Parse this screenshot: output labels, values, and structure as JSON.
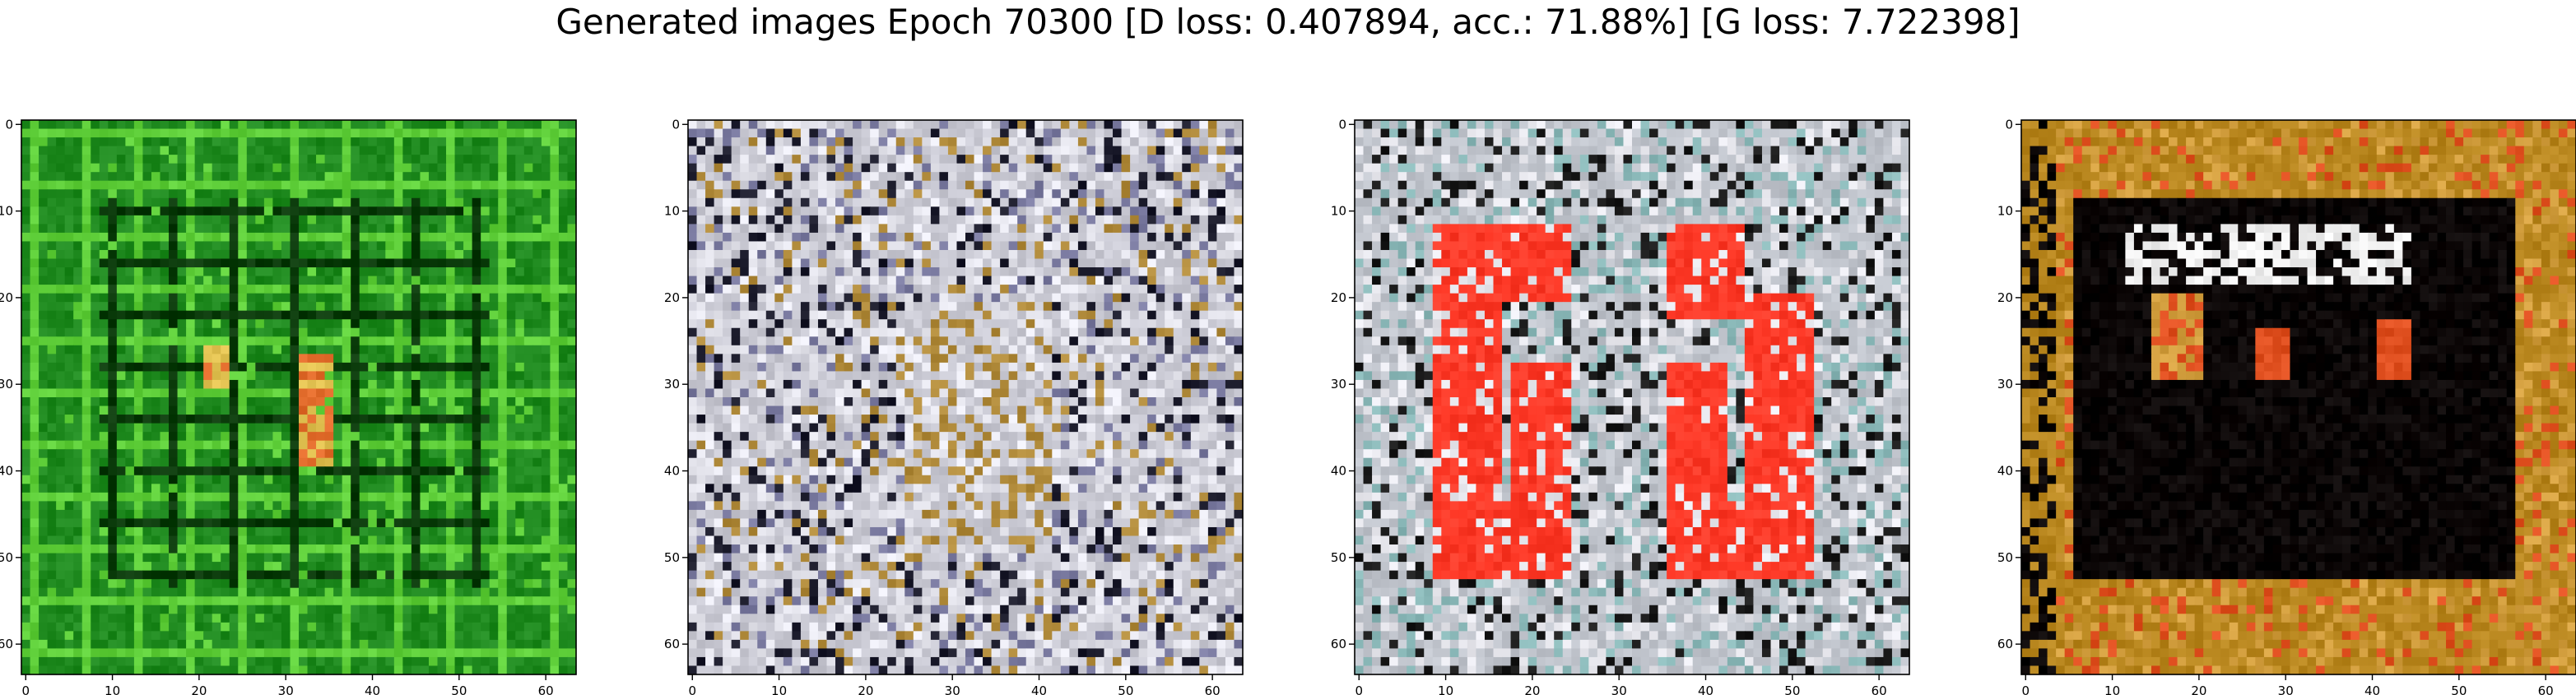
{
  "figure": {
    "title": "Generated images Epoch 70300 [D loss: 0.407894, acc.: 71.88%] [G loss: 7.722398]"
  },
  "chart_data": [
    {
      "type": "heatmap",
      "image_shape": [
        64,
        64
      ],
      "dominant_palette": [
        "#1f8a1f",
        "#5fcf3a",
        "#0a3a0a",
        "#e0c050",
        "#e06a2a"
      ],
      "xlim": [
        -0.5,
        63.5
      ],
      "ylim": [
        63.5,
        -0.5
      ],
      "x_ticks": [
        0,
        10,
        20,
        30,
        40,
        50,
        60
      ],
      "y_ticks": [
        0,
        10,
        20,
        30,
        40,
        50,
        60
      ],
      "grid": false
    },
    {
      "type": "heatmap",
      "image_shape": [
        64,
        64
      ],
      "dominant_palette": [
        "#c8c8d2",
        "#e8e8f0",
        "#1a1a2a",
        "#7a7aa0",
        "#b08a3a"
      ],
      "xlim": [
        -0.5,
        63.5
      ],
      "ylim": [
        63.5,
        -0.5
      ],
      "x_ticks": [
        0,
        10,
        20,
        30,
        40,
        50,
        60
      ],
      "y_ticks": [
        0,
        10,
        20,
        30,
        40,
        50,
        60
      ],
      "grid": false
    },
    {
      "type": "heatmap",
      "image_shape": [
        64,
        64
      ],
      "dominant_palette": [
        "#c0c4cc",
        "#ff3a28",
        "#8ab8b8",
        "#1a1a1a",
        "#e8e8ee"
      ],
      "xlim": [
        -0.5,
        63.5
      ],
      "ylim": [
        63.5,
        -0.5
      ],
      "x_ticks": [
        0,
        10,
        20,
        30,
        40,
        50,
        60
      ],
      "y_ticks": [
        0,
        10,
        20,
        30,
        40,
        50,
        60
      ],
      "grid": false
    },
    {
      "type": "heatmap",
      "image_shape": [
        64,
        64
      ],
      "dominant_palette": [
        "#b8861e",
        "#0a0505",
        "#f0f0f0",
        "#e05020",
        "#d4a040"
      ],
      "xlim": [
        -0.5,
        63.5
      ],
      "ylim": [
        63.5,
        -0.5
      ],
      "x_ticks": [
        0,
        10,
        20,
        30,
        40,
        50,
        60
      ],
      "y_ticks": [
        0,
        10,
        20,
        30,
        40,
        50,
        60
      ],
      "grid": false
    }
  ]
}
